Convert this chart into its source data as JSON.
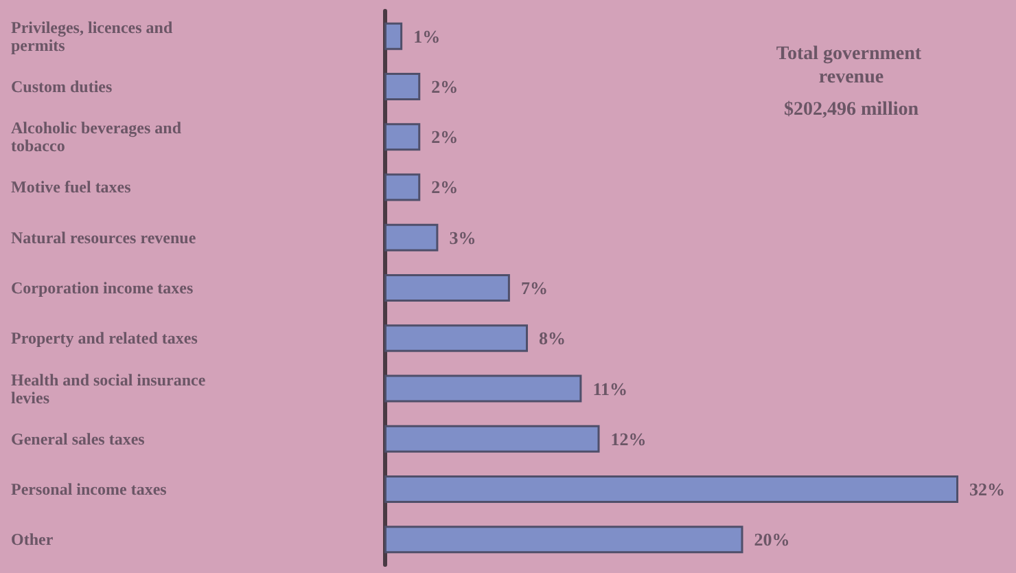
{
  "chart_data": {
    "type": "bar",
    "orientation": "horizontal",
    "title": "Total government revenue",
    "subtitle": "$202,496 million",
    "categories": [
      "Privileges, licences and permits",
      "Custom duties",
      "Alcoholic beverages and tobacco",
      "Motive fuel taxes",
      "Natural resources revenue",
      "Corporation income taxes",
      "Property and related taxes",
      "Health and social insurance levies",
      "General sales taxes",
      "Personal income taxes",
      "Other"
    ],
    "values": [
      1,
      2,
      2,
      2,
      3,
      7,
      8,
      11,
      12,
      32,
      20
    ],
    "value_labels": [
      "1%",
      "2%",
      "2%",
      "2%",
      "3%",
      "7%",
      "8%",
      "11%",
      "12%",
      "32%",
      "20%"
    ],
    "color": "#7f8fc8",
    "grid": false
  }
}
